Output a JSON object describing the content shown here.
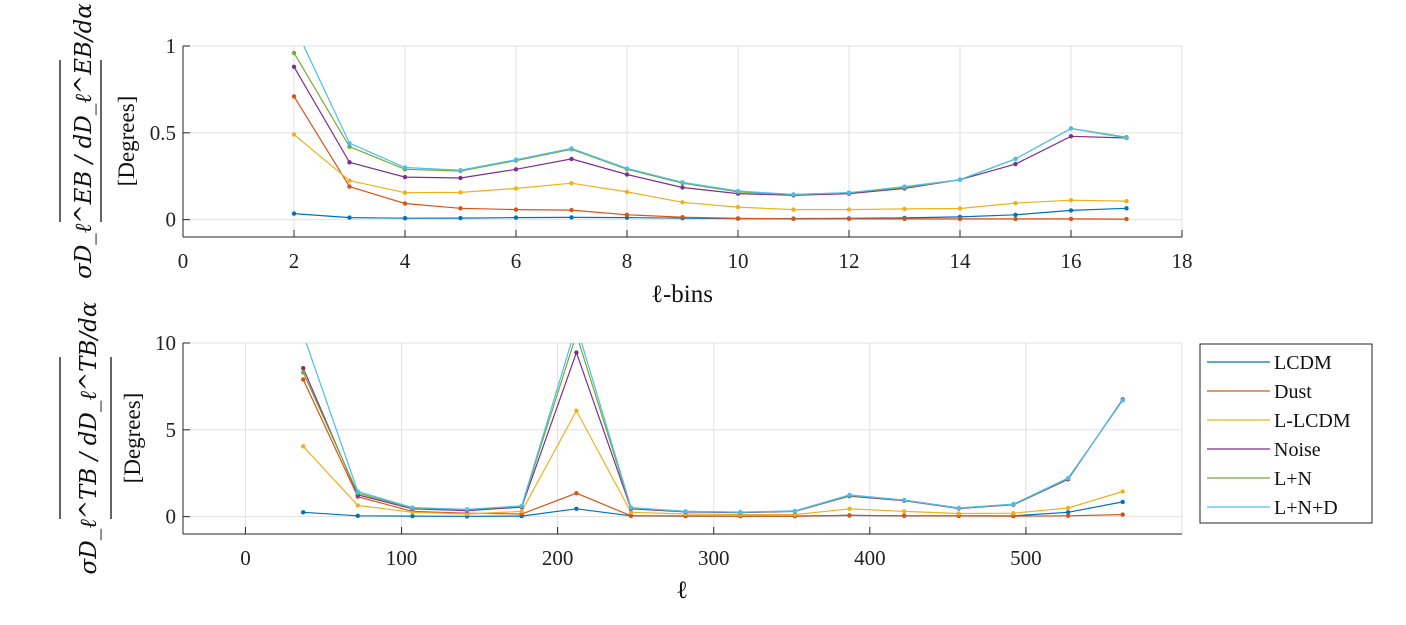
{
  "chart_data": [
    {
      "type": "line",
      "xlabel": "ℓ-bins",
      "ylabel_units": "[Degrees]",
      "ylabel_symbol": "σD_ℓ^EB / dD_ℓ^EB/dα",
      "xlim": [
        0,
        18
      ],
      "ylim": [
        -0.1,
        1
      ],
      "xticks": [
        0,
        2,
        4,
        6,
        8,
        10,
        12,
        14,
        16,
        18
      ],
      "yticks": [
        0,
        0.5,
        1
      ],
      "ytick_labels": [
        "0",
        "0.5",
        "1"
      ],
      "grid": true,
      "x": [
        2,
        3,
        4,
        5,
        6,
        7,
        8,
        9,
        10,
        11,
        12,
        13,
        14,
        15,
        16,
        17
      ],
      "series": [
        {
          "name": "LCDM",
          "color": "#0072BD",
          "values": [
            0.035,
            0.012,
            0.008,
            0.009,
            0.012,
            0.013,
            0.012,
            0.008,
            0.006,
            0.006,
            0.007,
            0.01,
            0.016,
            0.028,
            0.053,
            0.065
          ]
        },
        {
          "name": "Dust",
          "color": "#D95319",
          "values": [
            0.71,
            0.19,
            0.093,
            0.065,
            0.058,
            0.055,
            0.028,
            0.014,
            0.007,
            0.005,
            0.005,
            0.004,
            0.004,
            0.004,
            0.004,
            0.003
          ]
        },
        {
          "name": "L-LCDM",
          "color": "#EDB120",
          "values": [
            0.49,
            0.225,
            0.155,
            0.157,
            0.18,
            0.21,
            0.16,
            0.1,
            0.072,
            0.058,
            0.058,
            0.062,
            0.064,
            0.095,
            0.112,
            0.107
          ]
        },
        {
          "name": "Noise",
          "color": "#7E2F8E",
          "values": [
            0.88,
            0.33,
            0.245,
            0.24,
            0.29,
            0.35,
            0.26,
            0.185,
            0.15,
            0.14,
            0.15,
            0.18,
            0.23,
            0.32,
            0.48,
            0.47
          ]
        },
        {
          "name": "L+N",
          "color": "#77AC30",
          "values": [
            0.96,
            0.42,
            0.29,
            0.28,
            0.34,
            0.405,
            0.29,
            0.21,
            0.16,
            0.145,
            0.155,
            0.185,
            0.23,
            0.35,
            0.525,
            0.475
          ]
        },
        {
          "name": "L+N+D",
          "color": "#4DBEEE",
          "values": [
            1.12,
            0.44,
            0.3,
            0.285,
            0.345,
            0.41,
            0.295,
            0.215,
            0.165,
            0.145,
            0.155,
            0.19,
            0.23,
            0.35,
            0.525,
            0.47
          ]
        }
      ]
    },
    {
      "type": "line",
      "xlabel": "ℓ",
      "ylabel_units": "[Degrees]",
      "ylabel_symbol": "σD_ℓ^TB / dD_ℓ^TB/dα",
      "xlim": [
        -40,
        600
      ],
      "ylim": [
        -1,
        10
      ],
      "xticks": [
        0,
        100,
        200,
        300,
        400,
        500
      ],
      "yticks": [
        0,
        5,
        10
      ],
      "ytick_labels": [
        "0",
        "5",
        "10"
      ],
      "grid": true,
      "x": [
        37,
        72,
        107,
        142,
        177,
        212,
        247,
        282,
        317,
        352,
        387,
        422,
        457,
        492,
        527,
        562
      ],
      "series": [
        {
          "name": "LCDM",
          "color": "#0072BD",
          "values": [
            0.25,
            0.05,
            0.03,
            0.02,
            0.03,
            0.45,
            0.05,
            0.03,
            0.03,
            0.03,
            0.07,
            0.05,
            0.05,
            0.05,
            0.25,
            0.85
          ]
        },
        {
          "name": "Dust",
          "color": "#D95319",
          "values": [
            7.9,
            1.15,
            0.3,
            0.2,
            0.15,
            1.35,
            0.05,
            0.04,
            0.03,
            0.03,
            0.07,
            0.05,
            0.04,
            0.03,
            0.05,
            0.12
          ]
        },
        {
          "name": "L-LCDM",
          "color": "#EDB120",
          "values": [
            4.05,
            0.65,
            0.25,
            0.15,
            0.3,
            6.1,
            0.25,
            0.15,
            0.12,
            0.12,
            0.45,
            0.3,
            0.18,
            0.2,
            0.5,
            1.45
          ]
        },
        {
          "name": "Noise",
          "color": "#7E2F8E",
          "values": [
            8.55,
            1.25,
            0.45,
            0.35,
            0.55,
            9.45,
            0.45,
            0.27,
            0.23,
            0.3,
            1.18,
            0.92,
            0.47,
            0.68,
            2.15,
            6.75
          ]
        },
        {
          "name": "L+N",
          "color": "#77AC30",
          "values": [
            8.3,
            1.35,
            0.5,
            0.4,
            0.6,
            10.5,
            0.5,
            0.3,
            0.25,
            0.32,
            1.22,
            0.95,
            0.5,
            0.7,
            2.2,
            6.7
          ]
        },
        {
          "name": "L+N+D",
          "color": "#4DBEEE",
          "values": [
            10.5,
            1.45,
            0.52,
            0.42,
            0.62,
            11.0,
            0.52,
            0.3,
            0.26,
            0.33,
            1.25,
            0.95,
            0.5,
            0.72,
            2.22,
            6.7
          ]
        }
      ]
    }
  ],
  "legend": {
    "placement": "right",
    "entries": [
      "LCDM",
      "Dust",
      "L-LCDM",
      "Noise",
      "L+N",
      "L+N+D"
    ]
  }
}
